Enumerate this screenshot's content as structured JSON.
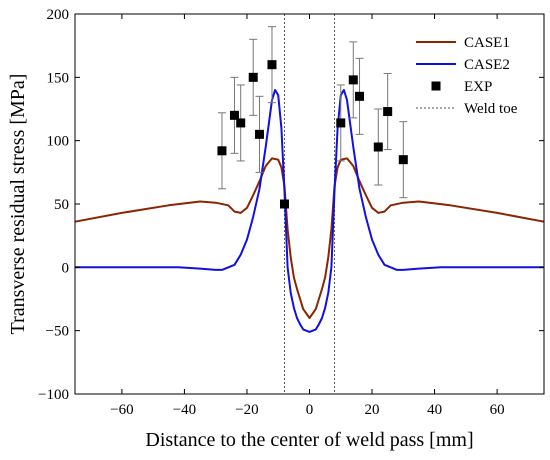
{
  "chart_data": {
    "type": "line",
    "xlabel": "Distance to the center of weld pass [mm]",
    "ylabel": "Transverse residual stress [MPa]",
    "xlim": [
      -75,
      75
    ],
    "ylim": [
      -100,
      200
    ],
    "xticks": [
      -60,
      -40,
      -20,
      0,
      20,
      40,
      60
    ],
    "yticks": [
      -100,
      -50,
      0,
      50,
      100,
      150,
      200
    ],
    "legend_position": "top-right",
    "series": [
      {
        "name": "CASE1",
        "color": "#8B2500",
        "style": "solid",
        "x": [
          -75,
          -60,
          -45,
          -35,
          -30,
          -26,
          -24,
          -22,
          -20,
          -18,
          -16,
          -14,
          -12,
          -10,
          -9,
          -8,
          -7,
          -6,
          -5,
          -4,
          -3,
          -2,
          0,
          2,
          3,
          4,
          5,
          6,
          7,
          8,
          9,
          10,
          12,
          14,
          16,
          18,
          20,
          22,
          24,
          26,
          30,
          35,
          45,
          60,
          75
        ],
        "y": [
          36,
          43,
          49,
          52,
          51,
          49,
          44,
          43,
          47,
          57,
          68,
          80,
          86,
          85,
          79,
          64,
          30,
          8,
          -8,
          -17,
          -25,
          -33,
          -40,
          -33,
          -25,
          -17,
          -8,
          8,
          30,
          64,
          79,
          85,
          86,
          80,
          68,
          57,
          47,
          43,
          44,
          49,
          51,
          52,
          49,
          43,
          36
        ]
      },
      {
        "name": "CASE2",
        "color": "#1010E0",
        "style": "solid",
        "x": [
          -75,
          -42,
          -35,
          -30,
          -28,
          -24,
          -22,
          -20,
          -18,
          -16,
          -14,
          -12,
          -11,
          -10,
          -9,
          -8,
          -7,
          -6,
          -5,
          -4,
          -3,
          -2,
          0,
          2,
          3,
          4,
          5,
          6,
          7,
          8,
          9,
          10,
          11,
          12,
          14,
          16,
          18,
          20,
          22,
          24,
          28,
          30,
          35,
          42,
          75
        ],
        "y": [
          0,
          0,
          -1,
          -2,
          -2,
          2,
          10,
          22,
          40,
          62,
          95,
          132,
          140,
          136,
          110,
          60,
          0,
          -20,
          -32,
          -40,
          -45,
          -49,
          -51,
          -49,
          -45,
          -40,
          -32,
          -20,
          0,
          60,
          110,
          136,
          140,
          132,
          95,
          62,
          40,
          22,
          10,
          2,
          -2,
          -2,
          -1,
          0,
          0
        ]
      }
    ],
    "exp": {
      "name": "EXP",
      "marker": "square",
      "color": "#000000",
      "points": [
        {
          "x": -28,
          "y": 92,
          "err": 30
        },
        {
          "x": -24,
          "y": 120,
          "err": 30
        },
        {
          "x": -22,
          "y": 114,
          "err": 30
        },
        {
          "x": -18,
          "y": 150,
          "err": 30
        },
        {
          "x": -16,
          "y": 105,
          "err": 30
        },
        {
          "x": -12,
          "y": 160,
          "err": 30
        },
        {
          "x": -8,
          "y": 50,
          "err": 0
        },
        {
          "x": 10,
          "y": 114,
          "err": 30
        },
        {
          "x": 14,
          "y": 148,
          "err": 30
        },
        {
          "x": 16,
          "y": 135,
          "err": 30
        },
        {
          "x": 22,
          "y": 95,
          "err": 30
        },
        {
          "x": 25,
          "y": 123,
          "err": 30
        },
        {
          "x": 30,
          "y": 85,
          "err": 30
        }
      ]
    },
    "weld_toe": {
      "name": "Weld toe",
      "style": "dotted",
      "color": "#555555",
      "x": [
        -8,
        8
      ]
    }
  }
}
